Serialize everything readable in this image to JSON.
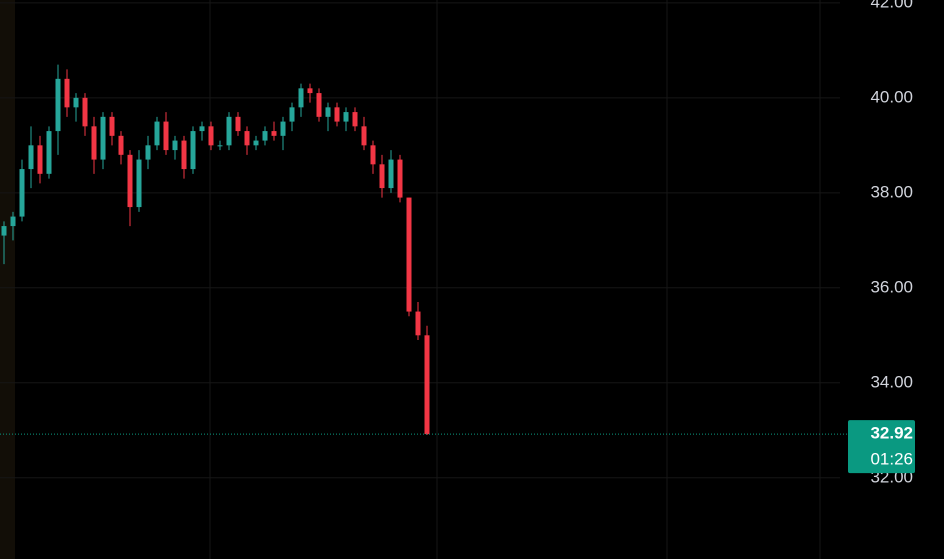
{
  "chart_data": {
    "type": "candlestick",
    "open": [
      37.1,
      37.3,
      37.5,
      38.5,
      39.0,
      38.4,
      39.3,
      40.4,
      39.8,
      40.0,
      39.4,
      38.7,
      39.6,
      39.2,
      38.8,
      37.7,
      38.7,
      39.0,
      39.5,
      38.9,
      39.1,
      38.5,
      39.3,
      39.4,
      39.0,
      39.0,
      39.6,
      39.3,
      39.0,
      39.1,
      39.3,
      39.2,
      39.5,
      39.8,
      40.2,
      40.1,
      39.6,
      39.8,
      39.5,
      39.7,
      39.4,
      39.0,
      38.6,
      38.1,
      38.7,
      37.9,
      35.5,
      35.0
    ],
    "high": [
      37.4,
      37.6,
      38.7,
      39.4,
      39.2,
      39.4,
      40.7,
      40.6,
      40.1,
      40.1,
      39.6,
      39.7,
      39.7,
      39.3,
      38.9,
      38.9,
      39.2,
      39.6,
      39.7,
      39.2,
      39.2,
      39.4,
      39.5,
      39.5,
      39.1,
      39.7,
      39.7,
      39.4,
      39.2,
      39.4,
      39.5,
      39.6,
      39.9,
      40.3,
      40.3,
      40.2,
      39.9,
      39.9,
      39.8,
      39.8,
      39.6,
      39.1,
      38.8,
      38.9,
      38.8,
      37.9,
      35.7,
      35.2
    ],
    "low": [
      36.5,
      37.0,
      37.4,
      38.1,
      38.2,
      38.3,
      38.8,
      39.6,
      39.5,
      39.2,
      38.4,
      38.5,
      39.0,
      38.6,
      37.3,
      37.6,
      38.5,
      38.9,
      38.8,
      38.7,
      38.3,
      38.4,
      39.1,
      38.9,
      38.9,
      38.9,
      39.2,
      38.8,
      38.9,
      39.0,
      39.1,
      38.9,
      39.3,
      39.6,
      39.9,
      39.5,
      39.3,
      39.4,
      39.3,
      39.3,
      38.9,
      38.4,
      37.9,
      38.0,
      37.8,
      35.4,
      34.9,
      32.9
    ],
    "close": [
      37.3,
      37.5,
      38.5,
      39.0,
      38.4,
      39.3,
      40.4,
      39.8,
      40.0,
      39.4,
      38.7,
      39.6,
      39.2,
      38.8,
      37.7,
      38.7,
      39.0,
      39.5,
      38.9,
      39.1,
      38.5,
      39.3,
      39.4,
      39.0,
      39.0,
      39.6,
      39.3,
      39.0,
      39.1,
      39.3,
      39.2,
      39.5,
      39.8,
      40.2,
      40.1,
      39.6,
      39.8,
      39.5,
      39.7,
      39.4,
      39.0,
      38.6,
      38.1,
      38.7,
      37.9,
      35.5,
      35.0,
      32.92
    ],
    "up_color": "#26a69a",
    "down_color": "#f23645",
    "ylim": [
      30.29,
      42.06
    ],
    "yticks": [
      {
        "value": 32,
        "label": "32.00"
      },
      {
        "value": 34,
        "label": "34.00"
      },
      {
        "value": 36,
        "label": "36.00"
      },
      {
        "value": 38,
        "label": "38.00"
      },
      {
        "value": 40,
        "label": "40.00"
      },
      {
        "value": 42,
        "label": "42.00"
      }
    ],
    "grid": true,
    "last_price": 32.92,
    "countdown": "01:26",
    "last_price_color": "#0a9981"
  }
}
